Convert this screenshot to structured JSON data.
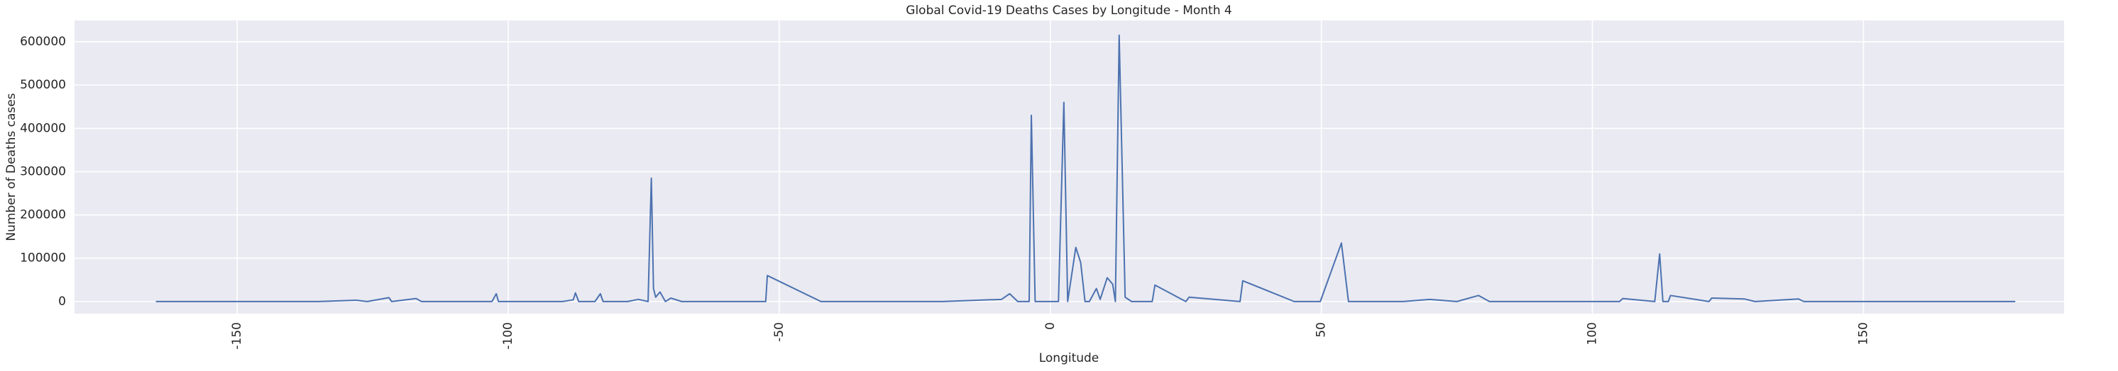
{
  "chart_data": {
    "type": "line",
    "title": "Global Covid-19 Deaths Cases by Longitude - Month 4",
    "x_label": "Longitude",
    "y_label": "Number of Deaths cases",
    "x": [
      -165,
      -135,
      -128,
      -126,
      -122,
      -121.5,
      -117,
      -116,
      -110,
      -103,
      -102.2,
      -101.8,
      -95,
      -90,
      -88,
      -87.6,
      -87,
      -84,
      -83,
      -82.5,
      -78,
      -76,
      -74.2,
      -73.6,
      -73.2,
      -72.8,
      -72,
      -71,
      -70,
      -68,
      -60,
      -52.5,
      -52.2,
      -42.3,
      -20,
      -9,
      -7.5,
      -6,
      -3.9,
      -3.5,
      -2.8,
      1.5,
      2.5,
      3.2,
      4.7,
      5.6,
      6.4,
      7.2,
      8.5,
      9.2,
      10.5,
      11.5,
      12,
      12.7,
      13.8,
      15,
      18.8,
      19.3,
      25,
      25.6,
      35,
      35.5,
      45,
      49.8,
      53.7,
      55,
      65,
      70,
      75,
      79,
      81,
      100,
      105,
      105.6,
      111.5,
      112.4,
      113,
      114,
      114.4,
      121.5,
      122,
      128,
      130,
      138,
      139,
      178
    ],
    "values": [
      0,
      0,
      3000,
      0,
      9000,
      0,
      7000,
      0,
      0,
      0,
      18000,
      0,
      0,
      0,
      4000,
      20000,
      0,
      0,
      18000,
      0,
      0,
      5000,
      0,
      285000,
      30000,
      10000,
      22000,
      0,
      8000,
      0,
      0,
      0,
      60000,
      0,
      0,
      5000,
      18000,
      0,
      0,
      430000,
      0,
      0,
      460000,
      0,
      125000,
      90000,
      0,
      0,
      30000,
      5000,
      55000,
      40000,
      0,
      615000,
      10000,
      0,
      0,
      38000,
      0,
      10000,
      0,
      48000,
      0,
      0,
      135000,
      0,
      0,
      5000,
      0,
      14000,
      0,
      0,
      0,
      7000,
      0,
      110000,
      0,
      0,
      14000,
      0,
      8000,
      6000,
      0,
      6000,
      0,
      0
    ],
    "color": "#4c72b0",
    "xlim": [
      -180,
      187
    ],
    "ylim": [
      -28000,
      649000
    ],
    "xticks": [
      -150,
      -100,
      -50,
      0,
      50,
      100,
      150
    ],
    "yticks": [
      0,
      100000,
      200000,
      300000,
      400000,
      500000,
      600000
    ],
    "grid": true,
    "background": "#eaeaf2"
  }
}
